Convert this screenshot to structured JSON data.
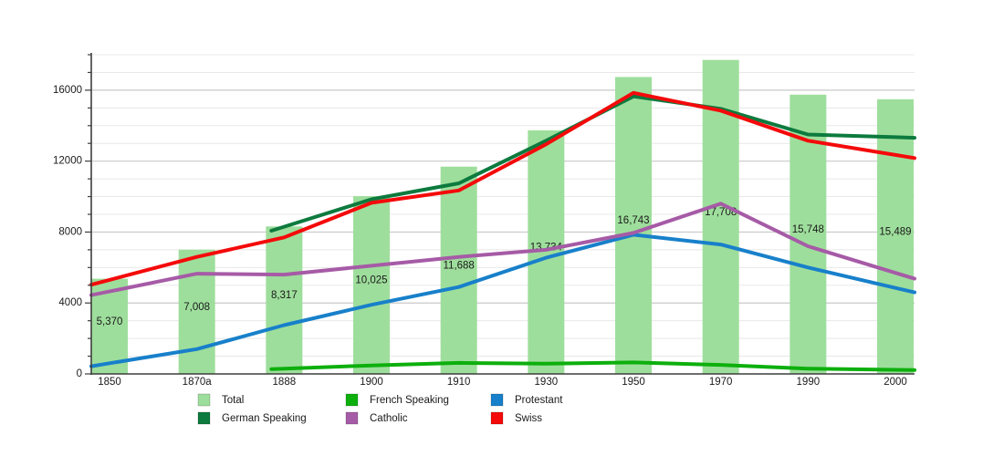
{
  "chart_data": {
    "type": "bar+line",
    "title": "",
    "xlabel": "",
    "ylabel": "",
    "categories": [
      "1850",
      "1870a",
      "1888",
      "1900",
      "1910",
      "1930",
      "1950",
      "1970",
      "1990",
      "2000"
    ],
    "bars": {
      "name": "Total",
      "color": "#9ede9c",
      "values": [
        5370,
        7008,
        8317,
        10025,
        11688,
        13734,
        16743,
        17708,
        15748,
        15489
      ],
      "labels": [
        "5,370",
        "7,008",
        "8,317",
        "10,025",
        "11,688",
        "13,734",
        "16,743",
        "17,708",
        "15,748",
        "15,489"
      ]
    },
    "series": [
      {
        "name": "German Speaking",
        "color": "#0d7a3e",
        "values": [
          null,
          null,
          8300,
          9850,
          10750,
          13150,
          15650,
          14950,
          13500,
          13350
        ]
      },
      {
        "name": "French Speaking",
        "color": "#0daf0d",
        "values": [
          null,
          null,
          300,
          480,
          620,
          580,
          650,
          510,
          300,
          230
        ]
      },
      {
        "name": "Protestant",
        "color": "#1880ca",
        "values": [
          600,
          1400,
          2750,
          3900,
          4900,
          6550,
          7850,
          7300,
          6000,
          4850
        ]
      },
      {
        "name": "Catholic",
        "color": "#a65ba6",
        "values": [
          4650,
          5650,
          5600,
          6100,
          6600,
          7000,
          7950,
          9600,
          7200,
          5700
        ]
      },
      {
        "name": "Swiss",
        "color": "#f40a0a",
        "values": [
          5300,
          6600,
          7700,
          9650,
          10350,
          12950,
          15850,
          14850,
          13150,
          12350
        ]
      }
    ],
    "draw_order": [
      "French Speaking",
      "German Speaking",
      "Protestant",
      "Catholic",
      "Swiss"
    ],
    "y_axis": {
      "tick_labels": [
        "0",
        "4000",
        "8000",
        "12000",
        "16000"
      ],
      "ticks": [
        0,
        4000,
        8000,
        12000,
        16000
      ],
      "minor_step": 1000,
      "min": 0,
      "max": 18000
    },
    "grid": true,
    "legend_position": "bottom",
    "legend": [
      "Total",
      "German Speaking",
      "French Speaking",
      "Catholic",
      "Protestant",
      "Swiss"
    ]
  },
  "style_colors": {
    "grid_minor": "#e8e8e8",
    "grid_major": "#c9c9c9",
    "axis": "#3d3d3d",
    "text": "#1a1a1a"
  }
}
